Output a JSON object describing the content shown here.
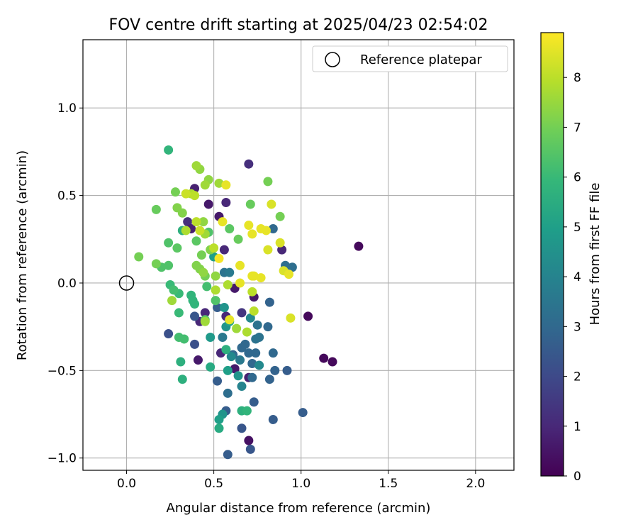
{
  "chart_data": {
    "type": "scatter",
    "title": "FOV centre drift starting at 2025/04/23 02:54:02",
    "xlabel": "Angular distance from reference (arcmin)",
    "ylabel": "Rotation from reference (arcmin)",
    "xlim": [
      -0.25,
      2.22
    ],
    "ylim": [
      -1.07,
      1.39
    ],
    "xticks": [
      0.0,
      0.5,
      1.0,
      1.5,
      2.0
    ],
    "xtick_labels": [
      "0.0",
      "0.5",
      "1.0",
      "1.5",
      "2.0"
    ],
    "yticks": [
      -1.0,
      -0.5,
      0.0,
      0.5,
      1.0
    ],
    "ytick_labels": [
      "−1.0",
      "−0.5",
      "0.0",
      "0.5",
      "1.0"
    ],
    "grid": true,
    "legend": {
      "location": "top-right",
      "entries": [
        "Reference platepar"
      ]
    },
    "reference_point": {
      "x": 0.0,
      "y": 0.0
    },
    "colorbar": {
      "label": "Hours from first FF file",
      "range": [
        0,
        8.9
      ],
      "ticks": [
        0,
        1,
        2,
        3,
        4,
        5,
        6,
        7,
        8
      ],
      "tick_labels": [
        "0",
        "1",
        "2",
        "3",
        "4",
        "5",
        "6",
        "7",
        "8"
      ],
      "colormap": "viridis",
      "colors": [
        "#440154",
        "#482878",
        "#3e4989",
        "#31688e",
        "#26828e",
        "#1f9e89",
        "#35b779",
        "#6ece58",
        "#b5de2b",
        "#fde725"
      ]
    },
    "points": [
      {
        "x": 1.33,
        "y": 0.21,
        "h": 0.2
      },
      {
        "x": 1.04,
        "y": -0.19,
        "h": 0.2
      },
      {
        "x": 1.13,
        "y": -0.43,
        "h": 0.2
      },
      {
        "x": 1.18,
        "y": -0.45,
        "h": 0.2
      },
      {
        "x": 0.7,
        "y": 0.68,
        "h": 1.2
      },
      {
        "x": 0.39,
        "y": 0.54,
        "h": 0.8
      },
      {
        "x": 0.47,
        "y": 0.45,
        "h": 0.6
      },
      {
        "x": 0.57,
        "y": 0.46,
        "h": 1.0
      },
      {
        "x": 0.53,
        "y": 0.38,
        "h": 0.6
      },
      {
        "x": 0.35,
        "y": 0.35,
        "h": 1.2
      },
      {
        "x": 0.37,
        "y": 0.31,
        "h": 0.8
      },
      {
        "x": 0.56,
        "y": 0.19,
        "h": 1.0
      },
      {
        "x": 0.89,
        "y": 0.19,
        "h": 1.0
      },
      {
        "x": 0.62,
        "y": -0.03,
        "h": 0.6
      },
      {
        "x": 0.73,
        "y": -0.08,
        "h": 0.6
      },
      {
        "x": 0.45,
        "y": -0.17,
        "h": 1.0
      },
      {
        "x": 0.42,
        "y": -0.22,
        "h": 1.0
      },
      {
        "x": 0.57,
        "y": -0.19,
        "h": 1.0
      },
      {
        "x": 0.66,
        "y": -0.17,
        "h": 1.4
      },
      {
        "x": 0.54,
        "y": -0.4,
        "h": 1.0
      },
      {
        "x": 0.41,
        "y": -0.44,
        "h": 0.6
      },
      {
        "x": 0.62,
        "y": -0.49,
        "h": 0.6
      },
      {
        "x": 0.7,
        "y": -0.54,
        "h": 0.8
      },
      {
        "x": 0.7,
        "y": -0.9,
        "h": 0.4
      },
      {
        "x": 0.24,
        "y": -0.29,
        "h": 2.2
      },
      {
        "x": 0.39,
        "y": -0.19,
        "h": 2.4
      },
      {
        "x": 0.39,
        "y": -0.35,
        "h": 2.2
      },
      {
        "x": 0.52,
        "y": -0.14,
        "h": 2.6
      },
      {
        "x": 0.52,
        "y": -0.56,
        "h": 2.6
      },
      {
        "x": 0.58,
        "y": -0.98,
        "h": 2.6
      },
      {
        "x": 0.66,
        "y": -0.83,
        "h": 2.4
      },
      {
        "x": 0.71,
        "y": -0.95,
        "h": 2.4
      },
      {
        "x": 0.73,
        "y": -0.68,
        "h": 2.6
      },
      {
        "x": 0.84,
        "y": -0.78,
        "h": 2.6
      },
      {
        "x": 0.92,
        "y": -0.5,
        "h": 2.6
      },
      {
        "x": 1.01,
        "y": -0.74,
        "h": 2.6
      },
      {
        "x": 0.57,
        "y": -0.73,
        "h": 2.6
      },
      {
        "x": 0.82,
        "y": -0.55,
        "h": 2.8
      },
      {
        "x": 0.85,
        "y": -0.5,
        "h": 2.8
      },
      {
        "x": 0.82,
        "y": -0.11,
        "h": 2.8
      },
      {
        "x": 0.84,
        "y": 0.31,
        "h": 3.0
      },
      {
        "x": 0.91,
        "y": 0.1,
        "h": 3.2
      },
      {
        "x": 0.95,
        "y": 0.09,
        "h": 3.2
      },
      {
        "x": 0.58,
        "y": -0.63,
        "h": 3.2
      },
      {
        "x": 0.61,
        "y": -0.41,
        "h": 3.0
      },
      {
        "x": 0.66,
        "y": -0.37,
        "h": 3.0
      },
      {
        "x": 0.68,
        "y": -0.35,
        "h": 3.0
      },
      {
        "x": 0.7,
        "y": -0.4,
        "h": 3.0
      },
      {
        "x": 0.72,
        "y": -0.46,
        "h": 3.0
      },
      {
        "x": 0.72,
        "y": -0.54,
        "h": 3.0
      },
      {
        "x": 0.74,
        "y": -0.4,
        "h": 3.0
      },
      {
        "x": 0.81,
        "y": -0.25,
        "h": 3.0
      },
      {
        "x": 0.84,
        "y": -0.4,
        "h": 3.0
      },
      {
        "x": 0.75,
        "y": -0.24,
        "h": 3.4
      },
      {
        "x": 0.74,
        "y": -0.32,
        "h": 3.4
      },
      {
        "x": 0.76,
        "y": -0.31,
        "h": 3.4
      },
      {
        "x": 0.56,
        "y": 0.06,
        "h": 3.4
      },
      {
        "x": 0.59,
        "y": 0.06,
        "h": 3.6
      },
      {
        "x": 0.55,
        "y": -0.31,
        "h": 3.6
      },
      {
        "x": 0.65,
        "y": -0.44,
        "h": 3.6
      },
      {
        "x": 0.66,
        "y": -0.59,
        "h": 4.0
      },
      {
        "x": 0.71,
        "y": -0.2,
        "h": 4.2
      },
      {
        "x": 0.76,
        "y": -0.47,
        "h": 4.2
      },
      {
        "x": 0.6,
        "y": -0.42,
        "h": 4.2
      },
      {
        "x": 0.64,
        "y": -0.53,
        "h": 4.6
      },
      {
        "x": 0.55,
        "y": -0.75,
        "h": 4.6
      },
      {
        "x": 0.56,
        "y": -0.14,
        "h": 4.6
      },
      {
        "x": 0.57,
        "y": -0.25,
        "h": 4.6
      },
      {
        "x": 0.48,
        "y": -0.31,
        "h": 4.8
      },
      {
        "x": 0.53,
        "y": -0.78,
        "h": 5.0
      },
      {
        "x": 0.58,
        "y": -0.5,
        "h": 5.0
      },
      {
        "x": 0.59,
        "y": -0.22,
        "h": 5.2
      },
      {
        "x": 0.5,
        "y": 0.15,
        "h": 5.0
      },
      {
        "x": 0.48,
        "y": -0.48,
        "h": 5.4
      },
      {
        "x": 0.53,
        "y": -0.83,
        "h": 5.4
      },
      {
        "x": 0.57,
        "y": -0.38,
        "h": 5.6
      },
      {
        "x": 0.66,
        "y": -0.73,
        "h": 5.6
      },
      {
        "x": 0.69,
        "y": -0.73,
        "h": 5.8
      },
      {
        "x": 0.31,
        "y": -0.45,
        "h": 5.6
      },
      {
        "x": 0.32,
        "y": -0.55,
        "h": 5.6
      },
      {
        "x": 0.32,
        "y": 0.3,
        "h": 5.6
      },
      {
        "x": 0.24,
        "y": 0.76,
        "h": 5.8
      },
      {
        "x": 0.37,
        "y": -0.07,
        "h": 5.8
      },
      {
        "x": 0.38,
        "y": -0.1,
        "h": 5.8
      },
      {
        "x": 0.39,
        "y": -0.12,
        "h": 5.8
      },
      {
        "x": 0.3,
        "y": -0.06,
        "h": 6.0
      },
      {
        "x": 0.25,
        "y": -0.01,
        "h": 6.0
      },
      {
        "x": 0.27,
        "y": -0.04,
        "h": 6.2
      },
      {
        "x": 0.3,
        "y": -0.17,
        "h": 6.0
      },
      {
        "x": 0.3,
        "y": -0.31,
        "h": 6.2
      },
      {
        "x": 0.33,
        "y": -0.32,
        "h": 6.2
      },
      {
        "x": 0.46,
        "y": -0.02,
        "h": 6.2
      },
      {
        "x": 0.51,
        "y": -0.1,
        "h": 6.4
      },
      {
        "x": 0.45,
        "y": -0.21,
        "h": 6.6
      },
      {
        "x": 0.24,
        "y": 0.23,
        "h": 6.4
      },
      {
        "x": 0.24,
        "y": 0.1,
        "h": 6.4
      },
      {
        "x": 0.2,
        "y": 0.09,
        "h": 6.4
      },
      {
        "x": 0.29,
        "y": 0.2,
        "h": 6.6
      },
      {
        "x": 0.4,
        "y": 0.24,
        "h": 6.6
      },
      {
        "x": 0.47,
        "y": 0.29,
        "h": 6.4
      },
      {
        "x": 0.59,
        "y": 0.31,
        "h": 6.6
      },
      {
        "x": 0.64,
        "y": 0.25,
        "h": 6.8
      },
      {
        "x": 0.71,
        "y": 0.45,
        "h": 6.8
      },
      {
        "x": 0.81,
        "y": 0.58,
        "h": 7.0
      },
      {
        "x": 0.88,
        "y": 0.38,
        "h": 7.0
      },
      {
        "x": 0.17,
        "y": 0.42,
        "h": 6.8
      },
      {
        "x": 0.07,
        "y": 0.15,
        "h": 7.0
      },
      {
        "x": 0.17,
        "y": 0.11,
        "h": 7.0
      },
      {
        "x": 0.28,
        "y": 0.52,
        "h": 7.0
      },
      {
        "x": 0.29,
        "y": 0.43,
        "h": 7.2
      },
      {
        "x": 0.32,
        "y": 0.4,
        "h": 7.2
      },
      {
        "x": 0.4,
        "y": 0.1,
        "h": 7.2
      },
      {
        "x": 0.42,
        "y": 0.08,
        "h": 7.2
      },
      {
        "x": 0.43,
        "y": 0.16,
        "h": 7.0
      },
      {
        "x": 0.45,
        "y": 0.04,
        "h": 7.0
      },
      {
        "x": 0.48,
        "y": 0.19,
        "h": 7.2
      },
      {
        "x": 0.44,
        "y": 0.06,
        "h": 7.4
      },
      {
        "x": 0.51,
        "y": 0.04,
        "h": 7.4
      },
      {
        "x": 0.47,
        "y": 0.59,
        "h": 7.4
      },
      {
        "x": 0.42,
        "y": 0.65,
        "h": 7.4
      },
      {
        "x": 0.4,
        "y": 0.67,
        "h": 7.6
      },
      {
        "x": 0.45,
        "y": 0.56,
        "h": 7.6
      },
      {
        "x": 0.53,
        "y": 0.57,
        "h": 7.6
      },
      {
        "x": 0.44,
        "y": 0.35,
        "h": 7.4
      },
      {
        "x": 0.45,
        "y": 0.28,
        "h": 7.6
      },
      {
        "x": 0.34,
        "y": 0.3,
        "h": 7.8
      },
      {
        "x": 0.37,
        "y": 0.51,
        "h": 7.8
      },
      {
        "x": 0.39,
        "y": 0.5,
        "h": 8.0
      },
      {
        "x": 0.34,
        "y": 0.51,
        "h": 8.2
      },
      {
        "x": 0.4,
        "y": 0.35,
        "h": 8.0
      },
      {
        "x": 0.42,
        "y": 0.3,
        "h": 8.2
      },
      {
        "x": 0.5,
        "y": 0.2,
        "h": 8.0
      },
      {
        "x": 0.26,
        "y": -0.1,
        "h": 7.6
      },
      {
        "x": 0.45,
        "y": -0.22,
        "h": 7.6
      },
      {
        "x": 0.51,
        "y": -0.04,
        "h": 7.8
      },
      {
        "x": 0.58,
        "y": -0.01,
        "h": 7.8
      },
      {
        "x": 0.63,
        "y": -0.26,
        "h": 7.6
      },
      {
        "x": 0.69,
        "y": -0.28,
        "h": 7.8
      },
      {
        "x": 0.72,
        "y": -0.05,
        "h": 8.0
      },
      {
        "x": 0.73,
        "y": -0.16,
        "h": 8.0
      },
      {
        "x": 0.57,
        "y": 0.56,
        "h": 8.6
      },
      {
        "x": 0.55,
        "y": 0.35,
        "h": 8.6
      },
      {
        "x": 0.53,
        "y": 0.14,
        "h": 8.8
      },
      {
        "x": 0.59,
        "y": -0.21,
        "h": 8.6
      },
      {
        "x": 0.65,
        "y": 0.0,
        "h": 8.6
      },
      {
        "x": 0.65,
        "y": 0.1,
        "h": 8.6
      },
      {
        "x": 0.7,
        "y": 0.33,
        "h": 8.6
      },
      {
        "x": 0.72,
        "y": 0.28,
        "h": 8.6
      },
      {
        "x": 0.72,
        "y": 0.04,
        "h": 8.6
      },
      {
        "x": 0.73,
        "y": 0.04,
        "h": 8.6
      },
      {
        "x": 0.77,
        "y": 0.03,
        "h": 8.6
      },
      {
        "x": 0.77,
        "y": 0.31,
        "h": 8.6
      },
      {
        "x": 0.8,
        "y": 0.3,
        "h": 8.6
      },
      {
        "x": 0.81,
        "y": 0.19,
        "h": 8.4
      },
      {
        "x": 0.83,
        "y": 0.45,
        "h": 8.4
      },
      {
        "x": 0.88,
        "y": 0.23,
        "h": 8.4
      },
      {
        "x": 0.9,
        "y": 0.07,
        "h": 8.4
      },
      {
        "x": 0.93,
        "y": 0.05,
        "h": 8.6
      },
      {
        "x": 0.94,
        "y": -0.2,
        "h": 8.4
      }
    ]
  }
}
